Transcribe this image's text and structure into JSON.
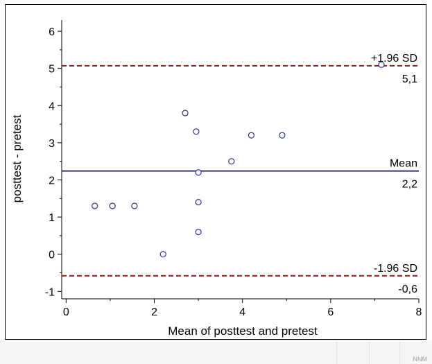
{
  "chart_data": {
    "type": "scatter",
    "title": "",
    "xlabel": "Mean of posttest and pretest",
    "ylabel": "posttest - pretest",
    "xlim": [
      -0.1,
      8
    ],
    "ylim": [
      -1.2,
      6.3
    ],
    "x_ticks": [
      0,
      2,
      4,
      6,
      8
    ],
    "y_ticks": [
      -1,
      0,
      1,
      2,
      3,
      4,
      5,
      6
    ],
    "grid": false,
    "points": [
      {
        "x": 0.65,
        "y": 1.3
      },
      {
        "x": 1.05,
        "y": 1.3
      },
      {
        "x": 1.55,
        "y": 1.3
      },
      {
        "x": 2.2,
        "y": 0.0
      },
      {
        "x": 2.7,
        "y": 3.8
      },
      {
        "x": 2.95,
        "y": 3.3
      },
      {
        "x": 3.0,
        "y": 2.2
      },
      {
        "x": 3.0,
        "y": 1.4
      },
      {
        "x": 3.0,
        "y": 0.6
      },
      {
        "x": 3.75,
        "y": 2.5
      },
      {
        "x": 4.2,
        "y": 3.2
      },
      {
        "x": 4.9,
        "y": 3.2
      },
      {
        "x": 7.15,
        "y": 5.1
      }
    ],
    "reference_lines": [
      {
        "label": "+1.96 SD",
        "value_label": "5,1",
        "y": 5.07,
        "style": "dashed",
        "color": "#8b1a1a"
      },
      {
        "label": "Mean",
        "value_label": "2,2",
        "y": 2.24,
        "style": "solid",
        "color": "#2e3192"
      },
      {
        "label": "-1.96 SD",
        "value_label": "-0,6",
        "y": -0.58,
        "style": "dashed",
        "color": "#8b1a1a"
      }
    ],
    "point_color": "#2e3192"
  },
  "footer": {
    "cell_text": "NNM"
  }
}
